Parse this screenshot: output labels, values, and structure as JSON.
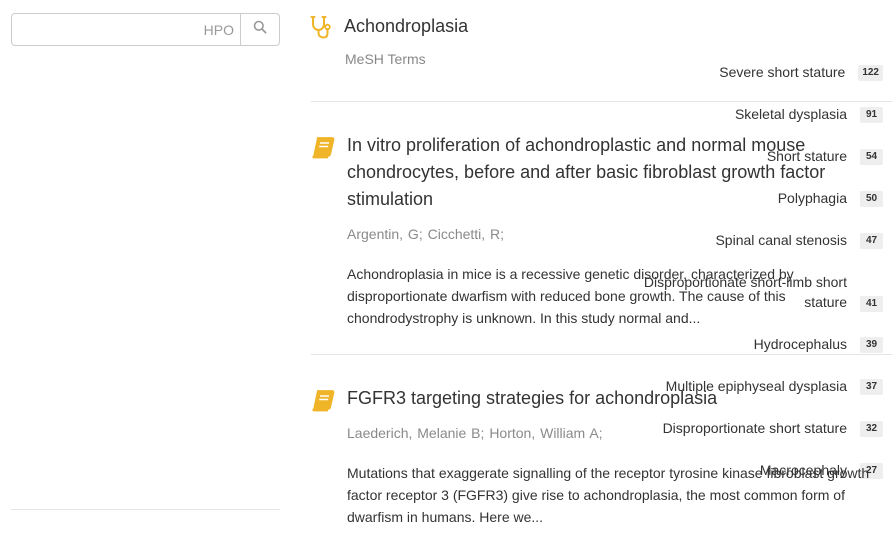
{
  "search": {
    "placeholder": "HPO",
    "value": ""
  },
  "facets": [
    {
      "label": "Severe short stature",
      "count": "122"
    },
    {
      "label": "Skeletal dysplasia",
      "count": "91"
    },
    {
      "label": "Short stature",
      "count": "54"
    },
    {
      "label": "Polyphagia",
      "count": "50"
    },
    {
      "label": "Spinal canal stenosis",
      "count": "47"
    },
    {
      "label": "Disproportionate short-limb short stature",
      "count": "41"
    },
    {
      "label": "Hydrocephalus",
      "count": "39"
    },
    {
      "label": "Multiple epiphyseal dysplasia",
      "count": "37"
    },
    {
      "label": "Disproportionate short stature",
      "count": "32"
    },
    {
      "label": "Macrocephaly",
      "count": "27"
    }
  ],
  "header_result": {
    "title": "Achondroplasia",
    "subtitle": "MeSH Terms",
    "icon": "stethoscope-icon"
  },
  "results": [
    {
      "title": "In vitro proliferation of achondroplastic and normal mouse chondrocytes, before and after basic fibroblast growth factor stimulation",
      "icon": "book-icon",
      "authors": [
        "Argentin, G;",
        "Cicchetti, R;"
      ],
      "abstract": "Achondroplasia in mice is a recessive genetic disorder, characterized by disproportionate dwarfism with reduced bone growth. The cause of this chondrodystrophy is unknown. In this study normal and..."
    },
    {
      "title": "FGFR3 targeting strategies for achondroplasia",
      "icon": "book-icon",
      "authors": [
        "Laederich, Melanie B;",
        "Horton, William A;"
      ],
      "abstract": "Mutations that exaggerate signalling of the receptor tyrosine kinase fibroblast growth factor receptor 3 (FGFR3) give rise to achondroplasia, the most common form of dwarfism in humans. Here we..."
    }
  ],
  "colors": {
    "accent": "#f0b429",
    "muted_text": "#8a8a8a",
    "badge_bg": "#eeeeee",
    "divider": "#e5e5e5"
  }
}
